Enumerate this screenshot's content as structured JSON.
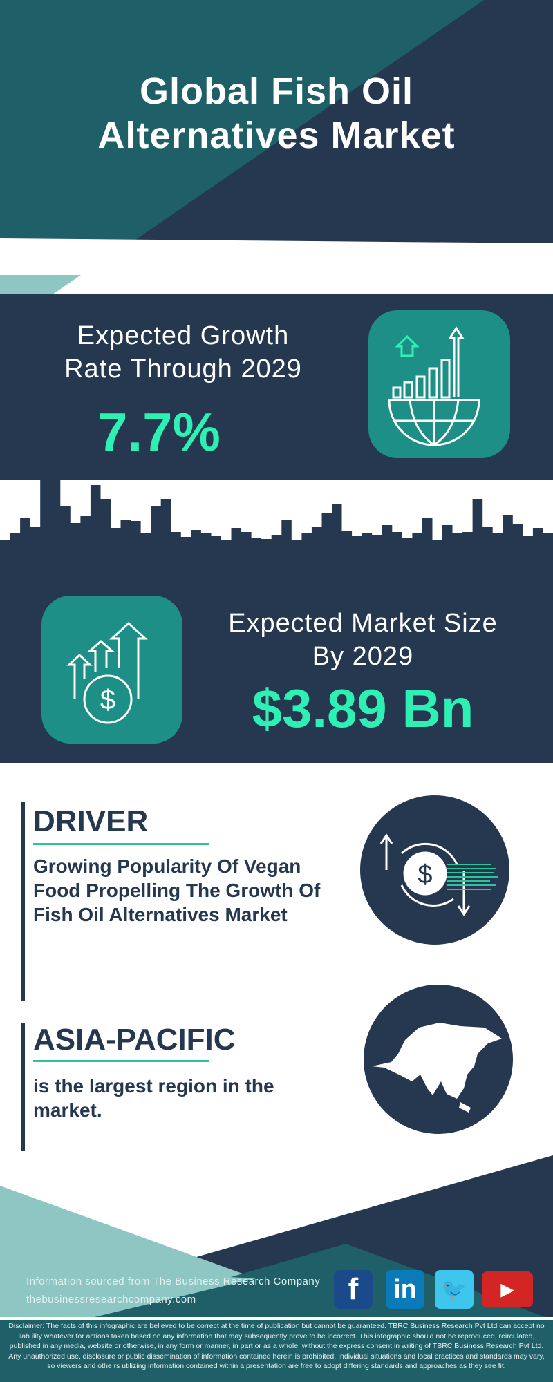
{
  "header": {
    "title_line1": "Global Fish Oil",
    "title_line2": "Alternatives Market"
  },
  "growth": {
    "label_line1": "Expected Growth",
    "label_line2": "Rate Through 2029",
    "value": "7.7%",
    "icon": "globe-bar-chart-icon"
  },
  "market": {
    "label_line1": "Expected Market Size",
    "label_line2": "By 2029",
    "value": "$3.89 Bn",
    "icon": "dollar-growth-arrows-icon"
  },
  "driver": {
    "heading": "DRIVER",
    "text": "Growing Popularity Of Vegan Food Propelling The Growth Of Fish Oil Alternatives Market",
    "icon": "dollar-exchange-icon"
  },
  "region": {
    "heading": "ASIA-PACIFIC",
    "text": "is the largest region in the market.",
    "icon": "asia-map-icon"
  },
  "footer": {
    "source": "Information sourced from The Business Research Company",
    "website": "thebusinessresearchcompany.com",
    "social": [
      {
        "name": "facebook",
        "glyph": "f",
        "color": "#1a4a8a"
      },
      {
        "name": "linkedin",
        "glyph": "in",
        "color": "#0a7bb8"
      },
      {
        "name": "twitter",
        "glyph": "🐦",
        "color": "#3ec6ee"
      },
      {
        "name": "youtube",
        "glyph": "▶",
        "color": "#d42525"
      }
    ],
    "disclaimer": "Disclaimer: The facts of this infographic are believed to be correct at the time of publication but cannot be guaranteed. TBRC Business Research Pvt Ltd can accept no liab ility whatever for actions taken based on any information that may subsequently prove to be incorrect. This infographic should not be reproduced, reirculated, published in any media, website or otherwise, in any form or manner, in part or as a whole, without the express consent in writing of TBRC Business Research Pvt Ltd. Any unauthorized use, disclosure or public dissemination of information contained herein is prohibited. Individual situations and local practices and standards may vary, so viewers and othe rs utilizing information contained within a presentation are free to adopt differing standards and approaches as they see fit."
  },
  "colors": {
    "navy": "#25384f",
    "teal": "#1f6068",
    "icon_box": "#1e8f86",
    "accent": "#2ef0b4",
    "light_teal": "#8dc6c2"
  }
}
